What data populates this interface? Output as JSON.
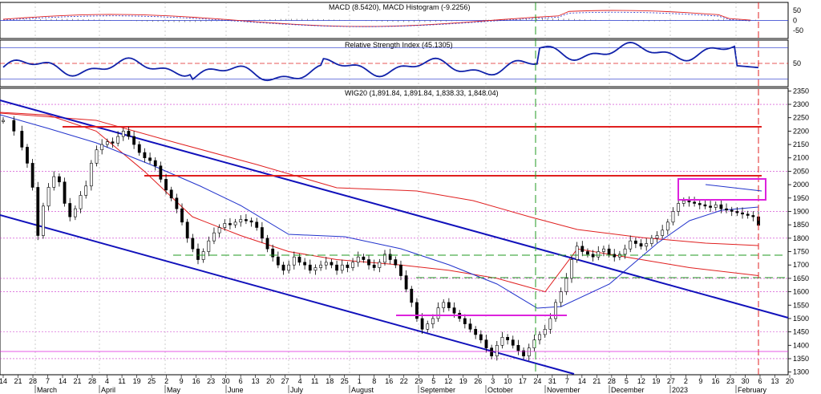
{
  "chart_data": [
    {
      "type": "bar",
      "panel": "macd",
      "title": "MACD (8.5420), MACD Histogram (-9.2256)",
      "y_ticks": [
        50,
        0,
        -50
      ],
      "ylim": [
        -80,
        80
      ],
      "grid": true
    },
    {
      "type": "line",
      "panel": "rsi",
      "title": "Relative Strength Index (45.1305)",
      "y_ticks": [
        50
      ],
      "ylim": [
        20,
        80
      ],
      "levels": [
        70,
        50,
        30
      ],
      "grid": true
    },
    {
      "type": "candlestick",
      "panel": "price",
      "title": "WIG20 (1,891.84, 1,891.84, 1,838.33, 1,848.04)",
      "ylim": [
        1290,
        2360
      ],
      "y_ticks": [
        2350,
        2300,
        2250,
        2200,
        2150,
        2100,
        2050,
        2000,
        1950,
        1900,
        1850,
        1800,
        1750,
        1700,
        1650,
        1600,
        1550,
        1500,
        1450,
        1400,
        1350,
        1300
      ],
      "close_series": [
        [
          0,
          2240
        ],
        [
          4,
          2200
        ],
        [
          7,
          2140
        ],
        [
          9,
          2080
        ],
        [
          11,
          1990
        ],
        [
          13,
          1810
        ],
        [
          15,
          1920
        ],
        [
          17,
          1990
        ],
        [
          19,
          2030
        ],
        [
          21,
          2010
        ],
        [
          23,
          1930
        ],
        [
          25,
          1880
        ],
        [
          27,
          1910
        ],
        [
          29,
          1960
        ],
        [
          31,
          1995
        ],
        [
          33,
          2080
        ],
        [
          35,
          2130
        ],
        [
          37,
          2150
        ],
        [
          39,
          2160
        ],
        [
          41,
          2155
        ],
        [
          43,
          2180
        ],
        [
          45,
          2200
        ],
        [
          47,
          2180
        ],
        [
          49,
          2150
        ],
        [
          51,
          2120
        ],
        [
          53,
          2100
        ],
        [
          55,
          2090
        ],
        [
          57,
          2070
        ],
        [
          59,
          2020
        ],
        [
          61,
          1980
        ],
        [
          63,
          1950
        ],
        [
          65,
          1910
        ],
        [
          67,
          1860
        ],
        [
          69,
          1800
        ],
        [
          71,
          1760
        ],
        [
          73,
          1720
        ],
        [
          75,
          1750
        ],
        [
          77,
          1790
        ],
        [
          79,
          1820
        ],
        [
          81,
          1840
        ],
        [
          83,
          1855
        ],
        [
          85,
          1850
        ],
        [
          87,
          1860
        ],
        [
          89,
          1870
        ],
        [
          91,
          1865
        ],
        [
          93,
          1860
        ],
        [
          95,
          1840
        ],
        [
          97,
          1800
        ],
        [
          99,
          1760
        ],
        [
          101,
          1730
        ],
        [
          103,
          1700
        ],
        [
          105,
          1680
        ],
        [
          107,
          1700
        ],
        [
          109,
          1730
        ],
        [
          111,
          1710
        ],
        [
          113,
          1700
        ],
        [
          115,
          1680
        ],
        [
          117,
          1690
        ],
        [
          119,
          1700
        ],
        [
          121,
          1710
        ],
        [
          123,
          1700
        ],
        [
          125,
          1680
        ],
        [
          127,
          1700
        ],
        [
          129,
          1690
        ],
        [
          131,
          1710
        ],
        [
          133,
          1730
        ],
        [
          135,
          1720
        ],
        [
          137,
          1700
        ],
        [
          139,
          1690
        ],
        [
          141,
          1710
        ],
        [
          143,
          1740
        ],
        [
          145,
          1720
        ],
        [
          147,
          1700
        ],
        [
          149,
          1660
        ],
        [
          151,
          1610
        ],
        [
          153,
          1560
        ],
        [
          155,
          1500
        ],
        [
          157,
          1460
        ],
        [
          159,
          1480
        ],
        [
          161,
          1500
        ],
        [
          163,
          1540
        ],
        [
          165,
          1560
        ],
        [
          167,
          1540
        ],
        [
          169,
          1520
        ],
        [
          171,
          1500
        ],
        [
          173,
          1480
        ],
        [
          175,
          1460
        ],
        [
          177,
          1440
        ],
        [
          179,
          1420
        ],
        [
          181,
          1390
        ],
        [
          183,
          1360
        ],
        [
          185,
          1400
        ],
        [
          187,
          1430
        ],
        [
          189,
          1420
        ],
        [
          191,
          1400
        ],
        [
          193,
          1380
        ],
        [
          195,
          1360
        ],
        [
          197,
          1390
        ],
        [
          199,
          1420
        ],
        [
          201,
          1440
        ],
        [
          203,
          1460
        ],
        [
          205,
          1500
        ],
        [
          207,
          1560
        ],
        [
          209,
          1600
        ],
        [
          211,
          1650
        ],
        [
          213,
          1720
        ],
        [
          215,
          1770
        ],
        [
          217,
          1750
        ],
        [
          219,
          1740
        ],
        [
          221,
          1730
        ],
        [
          223,
          1750
        ],
        [
          225,
          1760
        ],
        [
          227,
          1740
        ],
        [
          229,
          1730
        ],
        [
          231,
          1740
        ],
        [
          233,
          1760
        ],
        [
          235,
          1790
        ],
        [
          237,
          1780
        ],
        [
          239,
          1770
        ],
        [
          241,
          1780
        ],
        [
          243,
          1800
        ],
        [
          245,
          1810
        ],
        [
          247,
          1830
        ],
        [
          249,
          1860
        ],
        [
          251,
          1900
        ],
        [
          253,
          1930
        ],
        [
          255,
          1940
        ],
        [
          257,
          1935
        ],
        [
          259,
          1930
        ],
        [
          261,
          1925
        ],
        [
          263,
          1920
        ],
        [
          265,
          1915
        ],
        [
          267,
          1925
        ],
        [
          269,
          1910
        ],
        [
          271,
          1905
        ],
        [
          273,
          1900
        ],
        [
          275,
          1895
        ],
        [
          277,
          1890
        ],
        [
          279,
          1885
        ],
        [
          281,
          1880
        ],
        [
          283,
          1848
        ]
      ],
      "x_tick_labels": [
        "14",
        "21",
        "28",
        "7",
        "14",
        "21",
        "28",
        "4",
        "11",
        "19",
        "25",
        "2",
        "9",
        "16",
        "23",
        "30",
        "6",
        "13",
        "20",
        "27",
        "4",
        "11",
        "18",
        "25",
        "1",
        "8",
        "16",
        "22",
        "29",
        "5",
        "12",
        "19",
        "26",
        "3",
        "10",
        "17",
        "24",
        "31",
        "7",
        "14",
        "21",
        "28",
        "5",
        "12",
        "19",
        "27",
        "2",
        "9",
        "16",
        "23",
        "30",
        "6",
        "13",
        "20"
      ],
      "month_labels": [
        "March",
        "April",
        "May",
        "June",
        "July",
        "August",
        "September",
        "October",
        "November",
        "December",
        "2023",
        "February"
      ]
    }
  ]
}
